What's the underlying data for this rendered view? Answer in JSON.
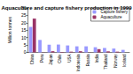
{
  "chart_data": {
    "type": "bar",
    "title": "Aquaculture and capture fishery production in 1999",
    "y_label": "Million tonnes",
    "categories": [
      "China",
      "Peru",
      "Japan",
      "Chile",
      "USA",
      "Indonesia",
      "Russia",
      "India",
      "Thailand",
      "Norway",
      "Iceland"
    ],
    "series": [
      {
        "name": "Capture fishery",
        "color": "#9999ff",
        "values": [
          17.2,
          8.4,
          5.2,
          5.3,
          4.7,
          4.1,
          4.1,
          3.5,
          3.0,
          2.6,
          1.7
        ]
      },
      {
        "name": "Aquaculture",
        "color": "#993366",
        "values": [
          22.8,
          0.1,
          0.8,
          0.3,
          0.5,
          0.8,
          0.1,
          2.2,
          0.7,
          0.5,
          0.0
        ]
      }
    ],
    "ylim": [
      0,
      30
    ],
    "yticks": [
      0,
      5,
      10,
      15,
      20,
      25,
      30
    ],
    "grid": false,
    "legend": "top-right"
  }
}
